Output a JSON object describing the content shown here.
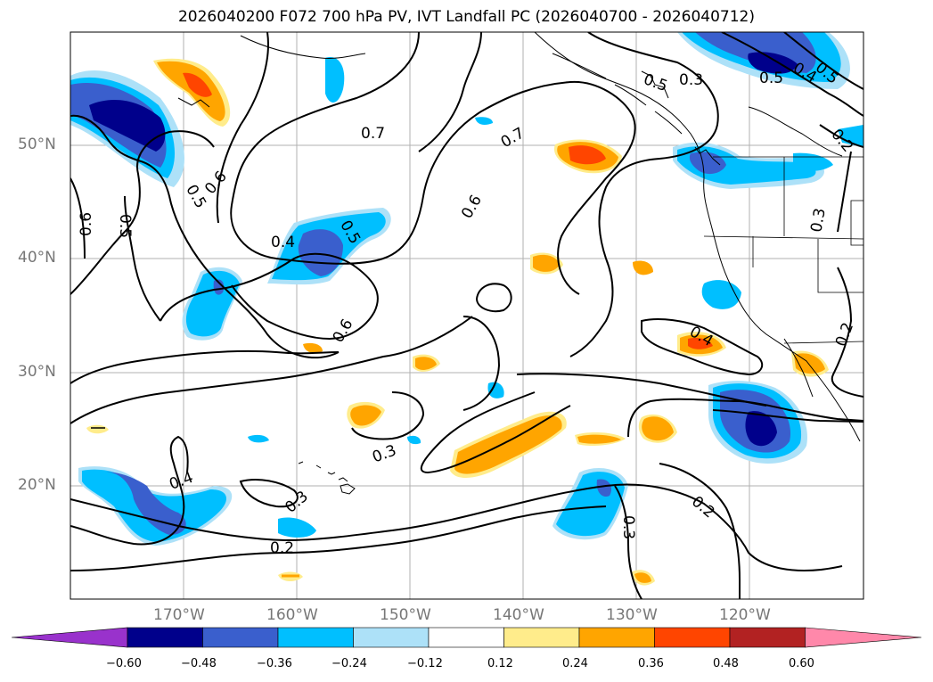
{
  "title": "2026040200 F072 700 hPa PV, IVT Landfall PC (2026040700 - 2026040712)",
  "latitude_labels": [
    "50°N",
    "40°N",
    "30°N",
    "20°N"
  ],
  "longitude_labels": [
    "170°W",
    "160°W",
    "150°W",
    "140°W",
    "130°W",
    "120°W"
  ],
  "colorbar": {
    "ticks": [
      "−0.60",
      "−0.48",
      "−0.36",
      "−0.24",
      "−0.12",
      "0.12",
      "0.24",
      "0.36",
      "0.48",
      "0.60"
    ],
    "colors": [
      "#9932CC",
      "#00008B",
      "#3A5FCD",
      "#00BFFF",
      "#ADE1F8",
      "#FFFFFF",
      "#FFEC8B",
      "#FFA500",
      "#FF4500",
      "#B22222",
      "#FF88AA"
    ]
  },
  "contour_labels": [
    "0.7",
    "0.7",
    "0.6",
    "0.6",
    "0.6",
    "0.5",
    "0.5",
    "0.6",
    "0.5",
    "0.4",
    "0.6",
    "0.4",
    "0.3",
    "0.3",
    "0.2",
    "0.4",
    "0.3",
    "0.2",
    "0.3",
    "0.5",
    "0.4",
    "0.3",
    "0.2",
    "0.2",
    "0.4",
    "0.3"
  ]
}
